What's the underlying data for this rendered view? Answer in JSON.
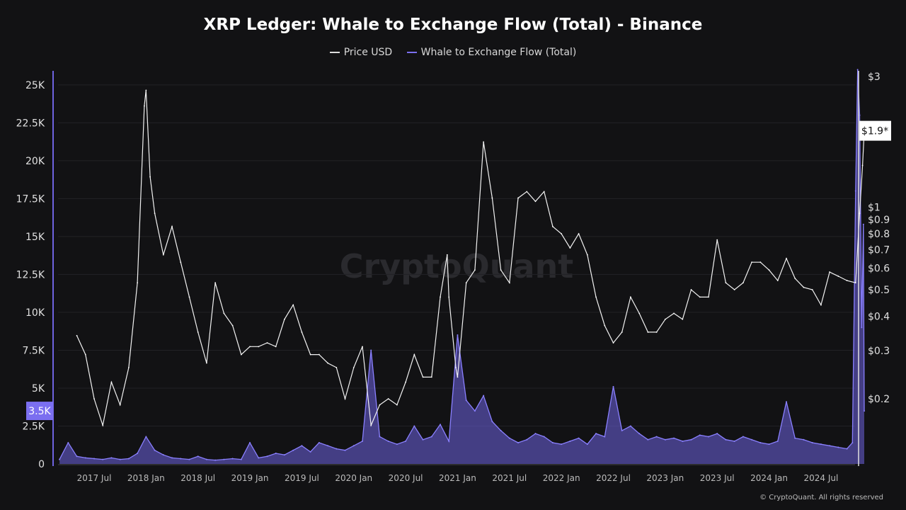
{
  "chart_data": {
    "type": "line",
    "title": "XRP Ledger: Whale to Exchange Flow (Total) - Binance",
    "watermark": "CryptoQuant",
    "footer": "© CryptoQuant. All rights reserved",
    "legend_position": "top",
    "grid": true,
    "colors": {
      "price": "#ffffff",
      "flow": "#7b6ff0",
      "background": "#121214"
    },
    "x_ticks": [
      "2017 Jul",
      "2018 Jan",
      "2018 Jul",
      "2019 Jan",
      "2019 Jul",
      "2020 Jan",
      "2020 Jul",
      "2021 Jan",
      "2021 Jul",
      "2022 Jan",
      "2022 Jul",
      "2023 Jan",
      "2023 Jul",
      "2024 Jan",
      "2024 Jul"
    ],
    "left_axis": {
      "ticks": [
        "0",
        "2.5K",
        "5K",
        "7.5K",
        "10K",
        "12.5K",
        "15K",
        "17.5K",
        "20K",
        "22.5K",
        "25K"
      ],
      "ylim": [
        0,
        27000
      ],
      "current_label": "3.5K",
      "current_value": 3500
    },
    "right_axis": {
      "scale": "log",
      "ticks": [
        "$0.2",
        "$0.3",
        "$0.4",
        "$0.5",
        "$0.6",
        "$0.7",
        "$0.8",
        "$0.9",
        "$1",
        "$3"
      ],
      "ylim": [
        0.12,
        3.3
      ],
      "current_label": "$1.9*",
      "current_value": 1.9
    },
    "series": [
      {
        "name": "Price USD",
        "axis": "right",
        "x": [
          "2017-05",
          "2017-06",
          "2017-07",
          "2017-08",
          "2017-09",
          "2017-10",
          "2017-11",
          "2017-12",
          "2017-12-25",
          "2018-01",
          "2018-01-15",
          "2018-02",
          "2018-03",
          "2018-04",
          "2018-05",
          "2018-06",
          "2018-07",
          "2018-08",
          "2018-09",
          "2018-10",
          "2018-11",
          "2018-12",
          "2019-01",
          "2019-02",
          "2019-03",
          "2019-04",
          "2019-05",
          "2019-06",
          "2019-07",
          "2019-08",
          "2019-09",
          "2019-10",
          "2019-11",
          "2019-12",
          "2020-01",
          "2020-02",
          "2020-03",
          "2020-04",
          "2020-05",
          "2020-06",
          "2020-07",
          "2020-08",
          "2020-09",
          "2020-10",
          "2020-11",
          "2020-11-25",
          "2020-12",
          "2020-12-25",
          "2021-01",
          "2021-02",
          "2021-03",
          "2021-04",
          "2021-05",
          "2021-06",
          "2021-07",
          "2021-08",
          "2021-09",
          "2021-10",
          "2021-11",
          "2021-12",
          "2022-01",
          "2022-02",
          "2022-03",
          "2022-04",
          "2022-05",
          "2022-06",
          "2022-07",
          "2022-08",
          "2022-09",
          "2022-10",
          "2022-11",
          "2022-12",
          "2023-01",
          "2023-02",
          "2023-03",
          "2023-04",
          "2023-05",
          "2023-06",
          "2023-07",
          "2023-08",
          "2023-09",
          "2023-10",
          "2023-11",
          "2023-12",
          "2024-01",
          "2024-02",
          "2024-03",
          "2024-04",
          "2024-05",
          "2024-06",
          "2024-07",
          "2024-08",
          "2024-09",
          "2024-10",
          "2024-11",
          "2024-11-15",
          "2024-11-25",
          "2024-12"
        ],
        "values": [
          0.34,
          0.29,
          0.2,
          0.16,
          0.23,
          0.19,
          0.26,
          0.53,
          2.34,
          2.67,
          1.29,
          0.95,
          0.67,
          0.85,
          0.63,
          0.47,
          0.35,
          0.27,
          0.53,
          0.41,
          0.37,
          0.29,
          0.31,
          0.31,
          0.32,
          0.31,
          0.39,
          0.44,
          0.35,
          0.29,
          0.29,
          0.27,
          0.26,
          0.2,
          0.26,
          0.31,
          0.16,
          0.19,
          0.2,
          0.19,
          0.23,
          0.29,
          0.24,
          0.24,
          0.47,
          0.67,
          0.47,
          0.26,
          0.24,
          0.53,
          0.59,
          1.73,
          1.08,
          0.59,
          0.53,
          1.08,
          1.14,
          1.05,
          1.14,
          0.85,
          0.8,
          0.71,
          0.8,
          0.67,
          0.47,
          0.37,
          0.32,
          0.35,
          0.47,
          0.41,
          0.35,
          0.35,
          0.39,
          0.41,
          0.39,
          0.5,
          0.47,
          0.47,
          0.76,
          0.53,
          0.5,
          0.53,
          0.63,
          0.63,
          0.59,
          0.54,
          0.65,
          0.55,
          0.51,
          0.5,
          0.44,
          0.58,
          0.56,
          0.54,
          0.53,
          0.95,
          1.42,
          1.89
        ]
      },
      {
        "name": "Whale to Exchange Flow (Total)",
        "axis": "left",
        "x": [
          "2017-03",
          "2017-04",
          "2017-05",
          "2017-06",
          "2017-07",
          "2017-08",
          "2017-09",
          "2017-10",
          "2017-11",
          "2017-12",
          "2018-01",
          "2018-02",
          "2018-03",
          "2018-04",
          "2018-05",
          "2018-06",
          "2018-07",
          "2018-08",
          "2018-09",
          "2018-10",
          "2018-11",
          "2018-12",
          "2019-01",
          "2019-02",
          "2019-03",
          "2019-04",
          "2019-05",
          "2019-06",
          "2019-07",
          "2019-08",
          "2019-09",
          "2019-10",
          "2019-11",
          "2019-12",
          "2020-01",
          "2020-02",
          "2020-03",
          "2020-04",
          "2020-05",
          "2020-06",
          "2020-07",
          "2020-08",
          "2020-09",
          "2020-10",
          "2020-11",
          "2020-12",
          "2021-01",
          "2021-02",
          "2021-03",
          "2021-04",
          "2021-05",
          "2021-06",
          "2021-07",
          "2021-08",
          "2021-09",
          "2021-10",
          "2021-11",
          "2021-12",
          "2022-01",
          "2022-02",
          "2022-03",
          "2022-04",
          "2022-05",
          "2022-06",
          "2022-07",
          "2022-08",
          "2022-09",
          "2022-10",
          "2022-11",
          "2022-12",
          "2023-01",
          "2023-02",
          "2023-03",
          "2023-04",
          "2023-05",
          "2023-06",
          "2023-07",
          "2023-08",
          "2023-09",
          "2023-10",
          "2023-11",
          "2023-12",
          "2024-01",
          "2024-02",
          "2024-03",
          "2024-04",
          "2024-05",
          "2024-06",
          "2024-07",
          "2024-08",
          "2024-09",
          "2024-10",
          "2024-10-20",
          "2024-11",
          "2024-11-08",
          "2024-11-15",
          "2024-11-22",
          "2024-11-28",
          "2024-12"
        ],
        "values": [
          300,
          1400,
          500,
          400,
          350,
          300,
          400,
          300,
          350,
          700,
          1800,
          900,
          600,
          400,
          350,
          300,
          500,
          300,
          250,
          300,
          350,
          300,
          1400,
          400,
          500,
          700,
          600,
          900,
          1200,
          800,
          1400,
          1200,
          1000,
          900,
          1200,
          1500,
          7500,
          1800,
          1500,
          1300,
          1500,
          2500,
          1600,
          1800,
          2600,
          1500,
          8500,
          4200,
          3500,
          4500,
          2800,
          2200,
          1700,
          1400,
          1600,
          2000,
          1800,
          1400,
          1300,
          1500,
          1700,
          1300,
          2000,
          1800,
          5100,
          2200,
          2500,
          2000,
          1600,
          1800,
          1600,
          1700,
          1500,
          1600,
          1900,
          1800,
          2000,
          1600,
          1500,
          1800,
          1600,
          1400,
          1300,
          1500,
          4100,
          1700,
          1600,
          1400,
          1300,
          1200,
          1100,
          1000,
          1400,
          18000,
          26000,
          23000,
          9000,
          15800,
          3500
        ]
      }
    ]
  }
}
